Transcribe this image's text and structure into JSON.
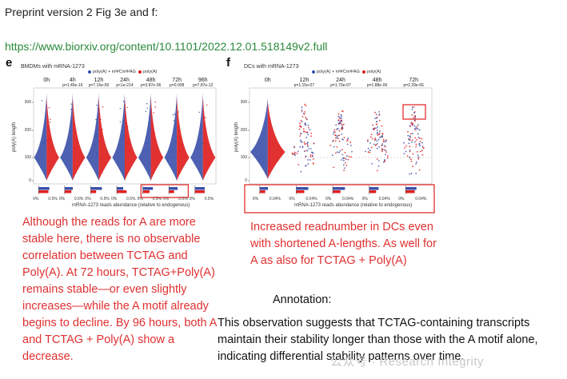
{
  "header": {
    "title": "Preprint version 2 Fig 3e and f:",
    "url": "https://www.biorxiv.org/content/10.1101/2022.12.01.518149v2.full"
  },
  "panel_e": {
    "letter": "e",
    "title": "BMDMs with mRNA-1273",
    "legend_a": "poly(A) + mΨCmΨAG",
    "legend_b": "poly(A)",
    "timepoints": [
      "0h",
      "4h",
      "12h",
      "24h",
      "48h",
      "72h",
      "96h"
    ],
    "pvalues": [
      "",
      "p=1.45e-16",
      "p=7.15e-09",
      "p<1e-214",
      "p=3.87e-06",
      "p=0.008",
      "p=7.87e-12"
    ],
    "y_label": "poly(A) length",
    "y_ticks": [
      "300",
      "200",
      "100",
      "0"
    ],
    "pct_labels": [
      "0%",
      "0.5%",
      "0%",
      "0.5%",
      "0%",
      "0.5%",
      "0%",
      "0.5%",
      "0%",
      "0.5%",
      "0%",
      "0.5%",
      "0%",
      "0.5%"
    ],
    "x_caption": "mRNA-1273 reads abundance (relative to endogenous)"
  },
  "panel_f": {
    "letter": "f",
    "title": "DCs with mRNA-1273",
    "legend_a": "poly(A) + mΨCmΨAG",
    "legend_b": "poly(A)",
    "timepoints": [
      "0h",
      "12h",
      "24h",
      "48h",
      "72h"
    ],
    "pvalues": [
      "",
      "p=1.15e-07",
      "p=1.70e-07",
      "p=1.88e-06",
      "p=2.29e-06"
    ],
    "y_label": "poly(A) length",
    "y_ticks": [
      "300",
      "200",
      "100",
      "0"
    ],
    "pct_labels": [
      "0%",
      "0.04%",
      "0%",
      "0.04%",
      "0%",
      "0.04%",
      "0%",
      "0.04%",
      "0%",
      "0.04%"
    ],
    "x_caption": "mRNA-1273 reads abundance (relative to endogenous)"
  },
  "notes": {
    "left": "Although the reads for A are more stable here, there is no observable correlation between TCTAG and Poly(A). At 72 hours, TCTAG+Poly(A) remains stable—or even slightly increases—while the A motif already begins to decline. By 96 hours, both A and TCTAG + Poly(A) show a decrease.",
    "right": "Increased readnumber in DCs even with shortened A-lengths. As well for A as also for TCTAG + Poly(A)",
    "annotation_title": "Annotation:",
    "annotation_body": "This observation suggests that TCTAG-containing transcripts maintain their stability longer than those with the A motif alone, indicating differential stability patterns over time."
  },
  "watermark": "公众号 · Research Integrity",
  "colors": {
    "blue": "#3a4fa8",
    "red": "#e02020",
    "annot": "#e03030",
    "link": "#2a8a3a"
  }
}
